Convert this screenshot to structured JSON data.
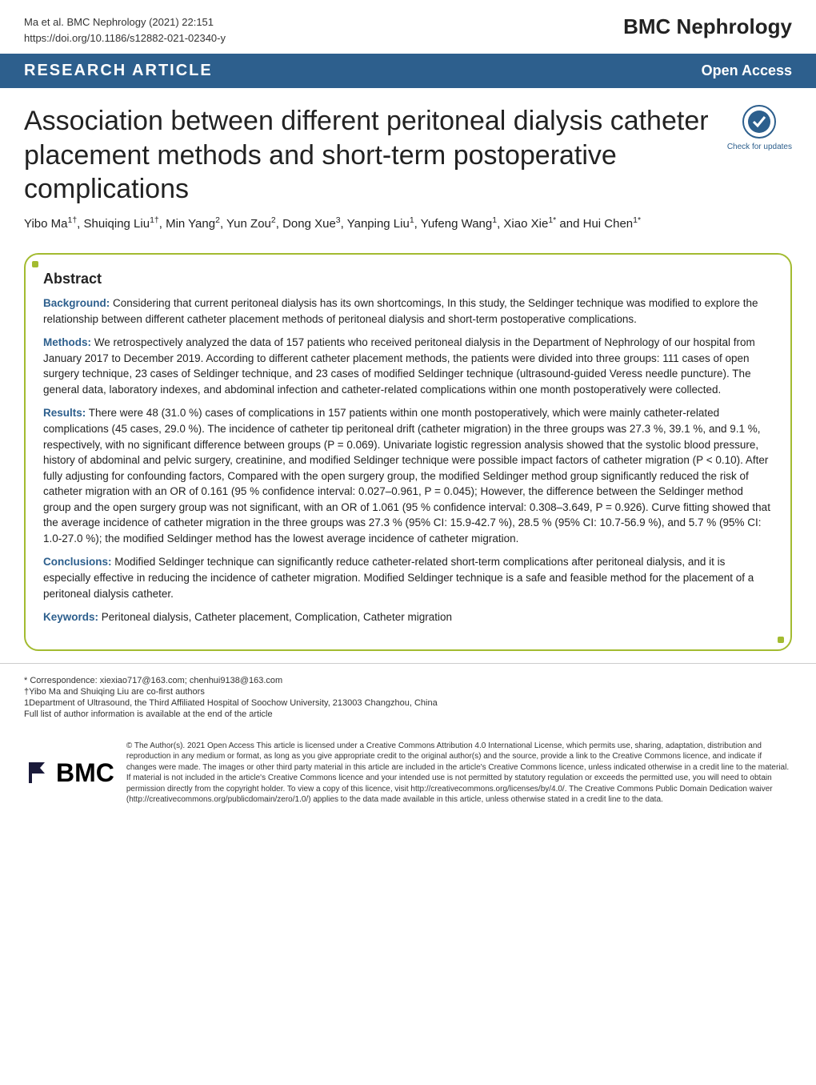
{
  "header": {
    "citation_line1": "Ma et al. BMC Nephrology        (2021) 22:151",
    "citation_line2": "https://doi.org/10.1186/s12882-021-02340-y",
    "journal": "BMC Nephrology"
  },
  "banner": {
    "article_type": "RESEARCH ARTICLE",
    "open_access": "Open Access"
  },
  "title": "Association between different peritoneal dialysis catheter placement methods and short-term postoperative complications",
  "check_updates_label": "Check for updates",
  "authors_html": "Yibo Ma<sup>1†</sup>, Shuiqing Liu<sup>1†</sup>, Min Yang<sup>2</sup>, Yun Zou<sup>2</sup>, Dong Xue<sup>3</sup>, Yanping Liu<sup>1</sup>, Yufeng Wang<sup>1</sup>, Xiao Xie<sup>1*</sup> and Hui Chen<sup>1*</sup>",
  "abstract": {
    "heading": "Abstract",
    "background_label": "Background:",
    "background": "Considering that current peritoneal dialysis has its own shortcomings, In this study, the Seldinger technique was modified to explore the relationship between different catheter placement methods of peritoneal dialysis and short-term postoperative complications.",
    "methods_label": "Methods:",
    "methods": "We retrospectively analyzed the data of 157 patients who received peritoneal dialysis in the Department of Nephrology of our hospital from January 2017 to December 2019. According to different catheter placement methods, the patients were divided into three groups: 111 cases of open surgery technique, 23 cases of Seldinger technique, and 23 cases of modified Seldinger technique (ultrasound-guided Veress needle puncture). The general data, laboratory indexes, and abdominal infection and catheter-related complications within one month postoperatively were collected.",
    "results_label": "Results:",
    "results": "There were 48 (31.0 %) cases of complications in 157 patients within one month postoperatively, which were mainly catheter-related complications (45 cases, 29.0 %). The incidence of catheter tip peritoneal drift (catheter migration) in the three groups was 27.3 %, 39.1 %, and 9.1 %, respectively, with no significant difference between groups (P = 0.069). Univariate logistic regression analysis showed that the systolic blood pressure, history of abdominal and pelvic surgery, creatinine, and modified Seldinger technique were possible impact factors of catheter migration (P < 0.10). After fully adjusting for confounding factors, Compared with the open surgery group, the modified Seldinger method group significantly reduced the risk of catheter migration with an OR of 0.161 (95 % confidence interval: 0.027–0.961, P = 0.045); However, the difference between the Seldinger method group and the open surgery group was not significant, with an OR of 1.061 (95 % confidence interval: 0.308–3.649, P = 0.926). Curve fitting showed that the average incidence of catheter migration in the three groups was 27.3 % (95% CI: 15.9-42.7 %), 28.5 % (95% CI: 10.7-56.9 %), and 5.7 % (95% CI: 1.0-27.0 %); the modified Seldinger method has the lowest average incidence of catheter migration.",
    "conclusions_label": "Conclusions:",
    "conclusions": "Modified Seldinger technique can significantly reduce catheter-related short-term complications after peritoneal dialysis, and it is especially effective in reducing the incidence of catheter migration. Modified Seldinger technique is a safe and feasible method for the placement of a peritoneal dialysis catheter.",
    "keywords_label": "Keywords:",
    "keywords": "Peritoneal dialysis, Catheter placement, Complication, Catheter migration"
  },
  "footer": {
    "correspondence": "* Correspondence: xiexiao717@163.com; chenhui9138@163.com",
    "cofirst": "†Yibo Ma and Shuiqing Liu are co-first authors",
    "affiliation": "1Department of Ultrasound, the Third Affiliated Hospital of Soochow University, 213003 Changzhou, China",
    "fulllist": "Full list of author information is available at the end of the article"
  },
  "bmc": "BMC",
  "license": "© The Author(s). 2021 Open Access This article is licensed under a Creative Commons Attribution 4.0 International License, which permits use, sharing, adaptation, distribution and reproduction in any medium or format, as long as you give appropriate credit to the original author(s) and the source, provide a link to the Creative Commons licence, and indicate if changes were made. The images or other third party material in this article are included in the article's Creative Commons licence, unless indicated otherwise in a credit line to the material. If material is not included in the article's Creative Commons licence and your intended use is not permitted by statutory regulation or exceeds the permitted use, you will need to obtain permission directly from the copyright holder. To view a copy of this licence, visit http://creativecommons.org/licenses/by/4.0/. The Creative Commons Public Domain Dedication waiver (http://creativecommons.org/publicdomain/zero/1.0/) applies to the data made available in this article, unless otherwise stated in a credit line to the data.",
  "colors": {
    "banner_bg": "#2d5f8d",
    "accent": "#a3bb30",
    "label": "#2d5f8d"
  }
}
